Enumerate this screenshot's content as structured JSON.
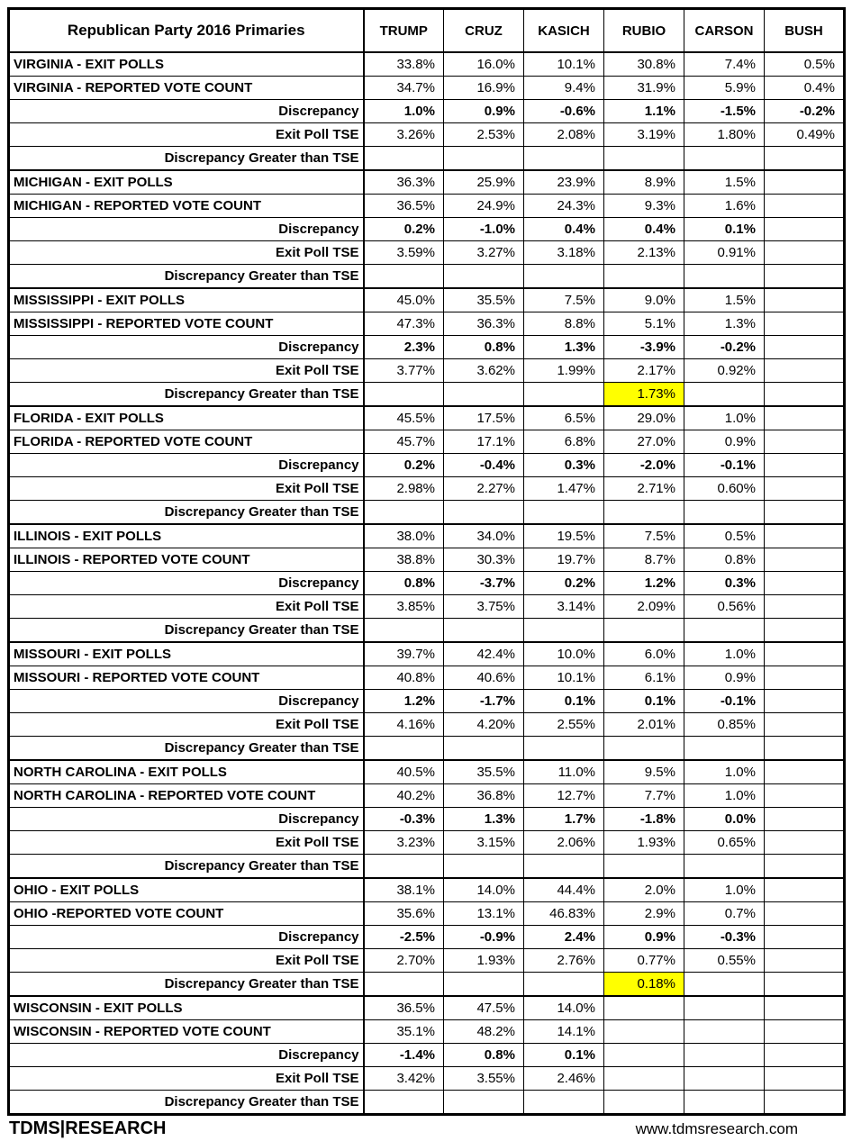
{
  "chart_data": {
    "type": "table",
    "title": "Republican Party 2016 Primaries",
    "columns": [
      "TRUMP",
      "CRUZ",
      "KASICH",
      "RUBIO",
      "CARSON",
      "BUSH"
    ],
    "groups": [
      {
        "state": "VIRGINIA",
        "rows": [
          {
            "kind": "exit",
            "label": "VIRGINIA - EXIT POLLS",
            "values": [
              "33.8%",
              "16.0%",
              "10.1%",
              "30.8%",
              "7.4%",
              "0.5%"
            ]
          },
          {
            "kind": "reported",
            "label": "VIRGINIA - REPORTED VOTE COUNT",
            "values": [
              "34.7%",
              "16.9%",
              "9.4%",
              "31.9%",
              "5.9%",
              "0.4%"
            ]
          },
          {
            "kind": "disc",
            "label": "Discrepancy",
            "values": [
              "1.0%",
              "0.9%",
              "-0.6%",
              "1.1%",
              "-1.5%",
              "-0.2%"
            ]
          },
          {
            "kind": "tse",
            "label": "Exit Poll TSE",
            "values": [
              "3.26%",
              "2.53%",
              "2.08%",
              "3.19%",
              "1.80%",
              "0.49%"
            ]
          },
          {
            "kind": "greater",
            "label": "Discrepancy Greater than TSE",
            "values": [
              "",
              "",
              "",
              "",
              "",
              ""
            ]
          }
        ]
      },
      {
        "state": "MICHIGAN",
        "rows": [
          {
            "kind": "exit",
            "label": "MICHIGAN - EXIT POLLS",
            "values": [
              "36.3%",
              "25.9%",
              "23.9%",
              "8.9%",
              "1.5%",
              ""
            ]
          },
          {
            "kind": "reported",
            "label": "MICHIGAN - REPORTED VOTE COUNT",
            "values": [
              "36.5%",
              "24.9%",
              "24.3%",
              "9.3%",
              "1.6%",
              ""
            ]
          },
          {
            "kind": "disc",
            "label": "Discrepancy",
            "values": [
              "0.2%",
              "-1.0%",
              "0.4%",
              "0.4%",
              "0.1%",
              ""
            ]
          },
          {
            "kind": "tse",
            "label": "Exit Poll TSE",
            "values": [
              "3.59%",
              "3.27%",
              "3.18%",
              "2.13%",
              "0.91%",
              ""
            ]
          },
          {
            "kind": "greater",
            "label": "Discrepancy Greater than TSE",
            "values": [
              "",
              "",
              "",
              "",
              "",
              ""
            ]
          }
        ]
      },
      {
        "state": "MISSISSIPPI",
        "rows": [
          {
            "kind": "exit",
            "label": "MISSISSIPPI - EXIT POLLS",
            "values": [
              "45.0%",
              "35.5%",
              "7.5%",
              "9.0%",
              "1.5%",
              ""
            ]
          },
          {
            "kind": "reported",
            "label": "MISSISSIPPI - REPORTED VOTE COUNT",
            "values": [
              "47.3%",
              "36.3%",
              "8.8%",
              "5.1%",
              "1.3%",
              ""
            ]
          },
          {
            "kind": "disc",
            "label": "Discrepancy",
            "values": [
              "2.3%",
              "0.8%",
              "1.3%",
              "-3.9%",
              "-0.2%",
              ""
            ]
          },
          {
            "kind": "tse",
            "label": "Exit Poll TSE",
            "values": [
              "3.77%",
              "3.62%",
              "1.99%",
              "2.17%",
              "0.92%",
              ""
            ]
          },
          {
            "kind": "greater",
            "label": "Discrepancy Greater than TSE",
            "values": [
              "",
              "",
              "",
              "1.73%",
              "",
              ""
            ],
            "highlight": [
              3
            ]
          }
        ]
      },
      {
        "state": "FLORIDA",
        "rows": [
          {
            "kind": "exit",
            "label": "FLORIDA - EXIT POLLS",
            "values": [
              "45.5%",
              "17.5%",
              "6.5%",
              "29.0%",
              "1.0%",
              ""
            ]
          },
          {
            "kind": "reported",
            "label": "FLORIDA - REPORTED VOTE COUNT",
            "values": [
              "45.7%",
              "17.1%",
              "6.8%",
              "27.0%",
              "0.9%",
              ""
            ]
          },
          {
            "kind": "disc",
            "label": "Discrepancy",
            "values": [
              "0.2%",
              "-0.4%",
              "0.3%",
              "-2.0%",
              "-0.1%",
              ""
            ]
          },
          {
            "kind": "tse",
            "label": "Exit Poll TSE",
            "values": [
              "2.98%",
              "2.27%",
              "1.47%",
              "2.71%",
              "0.60%",
              ""
            ]
          },
          {
            "kind": "greater",
            "label": "Discrepancy Greater than TSE",
            "values": [
              "",
              "",
              "",
              "",
              "",
              ""
            ]
          }
        ]
      },
      {
        "state": "ILLINOIS",
        "rows": [
          {
            "kind": "exit",
            "label": "ILLINOIS - EXIT POLLS",
            "values": [
              "38.0%",
              "34.0%",
              "19.5%",
              "7.5%",
              "0.5%",
              ""
            ]
          },
          {
            "kind": "reported",
            "label": "ILLINOIS - REPORTED VOTE COUNT",
            "values": [
              "38.8%",
              "30.3%",
              "19.7%",
              "8.7%",
              "0.8%",
              ""
            ]
          },
          {
            "kind": "disc",
            "label": "Discrepancy",
            "values": [
              "0.8%",
              "-3.7%",
              "0.2%",
              "1.2%",
              "0.3%",
              ""
            ]
          },
          {
            "kind": "tse",
            "label": "Exit Poll TSE",
            "values": [
              "3.85%",
              "3.75%",
              "3.14%",
              "2.09%",
              "0.56%",
              ""
            ]
          },
          {
            "kind": "greater",
            "label": "Discrepancy Greater than TSE",
            "values": [
              "",
              "",
              "",
              "",
              "",
              ""
            ]
          }
        ]
      },
      {
        "state": "MISSOURI",
        "rows": [
          {
            "kind": "exit",
            "label": "MISSOURI - EXIT POLLS",
            "values": [
              "39.7%",
              "42.4%",
              "10.0%",
              "6.0%",
              "1.0%",
              ""
            ]
          },
          {
            "kind": "reported",
            "label": "MISSOURI - REPORTED VOTE COUNT",
            "values": [
              "40.8%",
              "40.6%",
              "10.1%",
              "6.1%",
              "0.9%",
              ""
            ]
          },
          {
            "kind": "disc",
            "label": "Discrepancy",
            "values": [
              "1.2%",
              "-1.7%",
              "0.1%",
              "0.1%",
              "-0.1%",
              ""
            ]
          },
          {
            "kind": "tse",
            "label": "Exit Poll TSE",
            "values": [
              "4.16%",
              "4.20%",
              "2.55%",
              "2.01%",
              "0.85%",
              ""
            ]
          },
          {
            "kind": "greater",
            "label": "Discrepancy Greater than TSE",
            "values": [
              "",
              "",
              "",
              "",
              "",
              ""
            ]
          }
        ]
      },
      {
        "state": "NORTH CAROLINA",
        "rows": [
          {
            "kind": "exit",
            "label": "NORTH CAROLINA - EXIT POLLS",
            "values": [
              "40.5%",
              "35.5%",
              "11.0%",
              "9.5%",
              "1.0%",
              ""
            ]
          },
          {
            "kind": "reported",
            "label": "NORTH CAROLINA - REPORTED VOTE COUNT",
            "values": [
              "40.2%",
              "36.8%",
              "12.7%",
              "7.7%",
              "1.0%",
              ""
            ]
          },
          {
            "kind": "disc",
            "label": "Discrepancy",
            "values": [
              "-0.3%",
              "1.3%",
              "1.7%",
              "-1.8%",
              "0.0%",
              ""
            ]
          },
          {
            "kind": "tse",
            "label": "Exit Poll TSE",
            "values": [
              "3.23%",
              "3.15%",
              "2.06%",
              "1.93%",
              "0.65%",
              ""
            ]
          },
          {
            "kind": "greater",
            "label": "Discrepancy Greater than TSE",
            "values": [
              "",
              "",
              "",
              "",
              "",
              ""
            ]
          }
        ]
      },
      {
        "state": "OHIO",
        "rows": [
          {
            "kind": "exit",
            "label": "OHIO - EXIT POLLS",
            "values": [
              "38.1%",
              "14.0%",
              "44.4%",
              "2.0%",
              "1.0%",
              ""
            ]
          },
          {
            "kind": "reported",
            "label": "OHIO -REPORTED VOTE COUNT",
            "values": [
              "35.6%",
              "13.1%",
              "46.83%",
              "2.9%",
              "0.7%",
              ""
            ]
          },
          {
            "kind": "disc",
            "label": "Discrepancy",
            "values": [
              "-2.5%",
              "-0.9%",
              "2.4%",
              "0.9%",
              "-0.3%",
              ""
            ]
          },
          {
            "kind": "tse",
            "label": "Exit Poll TSE",
            "values": [
              "2.70%",
              "1.93%",
              "2.76%",
              "0.77%",
              "0.55%",
              ""
            ]
          },
          {
            "kind": "greater",
            "label": "Discrepancy Greater than TSE",
            "values": [
              "",
              "",
              "",
              "0.18%",
              "",
              ""
            ],
            "highlight": [
              3
            ]
          }
        ]
      },
      {
        "state": "WISCONSIN",
        "rows": [
          {
            "kind": "exit",
            "label": "WISCONSIN - EXIT POLLS",
            "values": [
              "36.5%",
              "47.5%",
              "14.0%",
              "",
              "",
              ""
            ]
          },
          {
            "kind": "reported",
            "label": "WISCONSIN - REPORTED VOTE COUNT",
            "values": [
              "35.1%",
              "48.2%",
              "14.1%",
              "",
              "",
              ""
            ]
          },
          {
            "kind": "disc",
            "label": "Discrepancy",
            "values": [
              "-1.4%",
              "0.8%",
              "0.1%",
              "",
              "",
              ""
            ]
          },
          {
            "kind": "tse",
            "label": "Exit Poll TSE",
            "values": [
              "3.42%",
              "3.55%",
              "2.46%",
              "",
              "",
              ""
            ]
          },
          {
            "kind": "greater",
            "label": "Discrepancy Greater than TSE",
            "values": [
              "",
              "",
              "",
              "",
              "",
              ""
            ]
          }
        ]
      }
    ]
  },
  "footer": {
    "brand": "TDMS|RESEARCH",
    "website": "www.tdmsresearch.com"
  },
  "colors": {
    "highlight": "#FFFF00",
    "border": "#000000",
    "text": "#000000",
    "background": "#FFFFFF"
  }
}
